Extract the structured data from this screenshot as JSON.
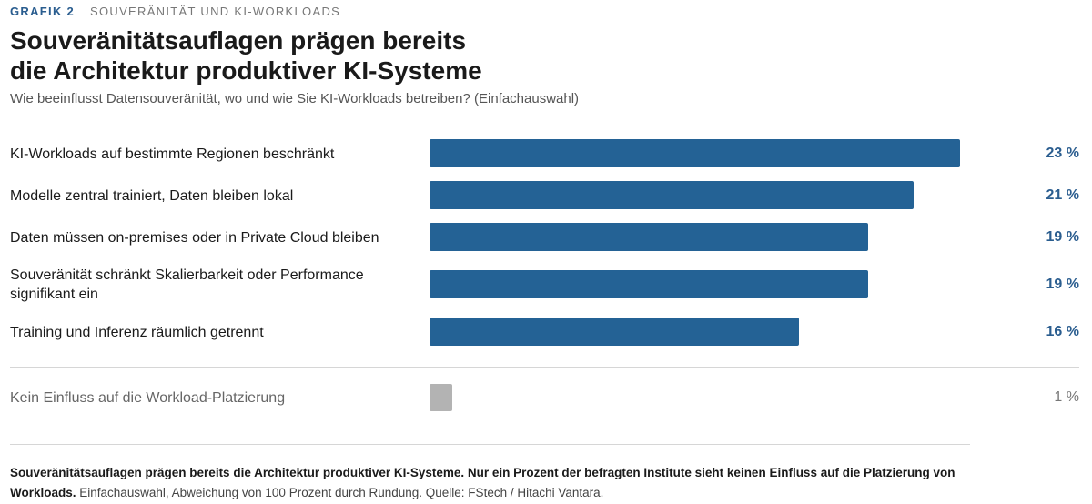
{
  "header": {
    "figure_number": "GRAFIK 2",
    "topic": "SOUVERÄNITÄT UND KI-WORKLOADS",
    "title_line1": "Souveränitätsauflagen prägen bereits",
    "title_line2": "die Architektur produktiver KI-Systeme",
    "subtitle": "Wie beeinflusst Datensouveränität, wo und wie Sie KI-Workloads betreiben? (Einfachauswahl)"
  },
  "chart_data": {
    "type": "bar",
    "orientation": "horizontal",
    "unit": "%",
    "xlim": [
      0,
      23
    ],
    "categories": [
      "KI-Workloads auf bestimmte Regionen beschränkt",
      "Modelle zentral trainiert, Daten bleiben lokal",
      "Daten müssen on-premises oder in Private Cloud bleiben",
      "Souveränität schränkt Skalierbarkeit oder Performance signifikant ein",
      "Training und Inferenz räumlich getrennt",
      "Kein Einfluss auf die Workload-Platzierung"
    ],
    "values": [
      23,
      21,
      19,
      19,
      16,
      1
    ],
    "value_labels": [
      "23 %",
      "21 %",
      "19 %",
      "19 %",
      "16 %",
      "1 %"
    ],
    "highlight": [
      true,
      true,
      true,
      true,
      true,
      false
    ],
    "colors": {
      "primary": "#246295",
      "muted": "#b3b3b3",
      "accent_text": "#2a5d8f"
    },
    "grid": false,
    "legend": "none"
  },
  "footnote": {
    "lead": "Souveränitätsauflagen prägen bereits die Architektur produktiver KI-Systeme. Nur ein Prozent der befragten Institute sieht keinen Einfluss auf die Platzierung von Workloads.",
    "rest": " Einfachauswahl, Abweichung von 100 Prozent durch Rundung. Quelle: FStech / Hitachi Vantara."
  }
}
